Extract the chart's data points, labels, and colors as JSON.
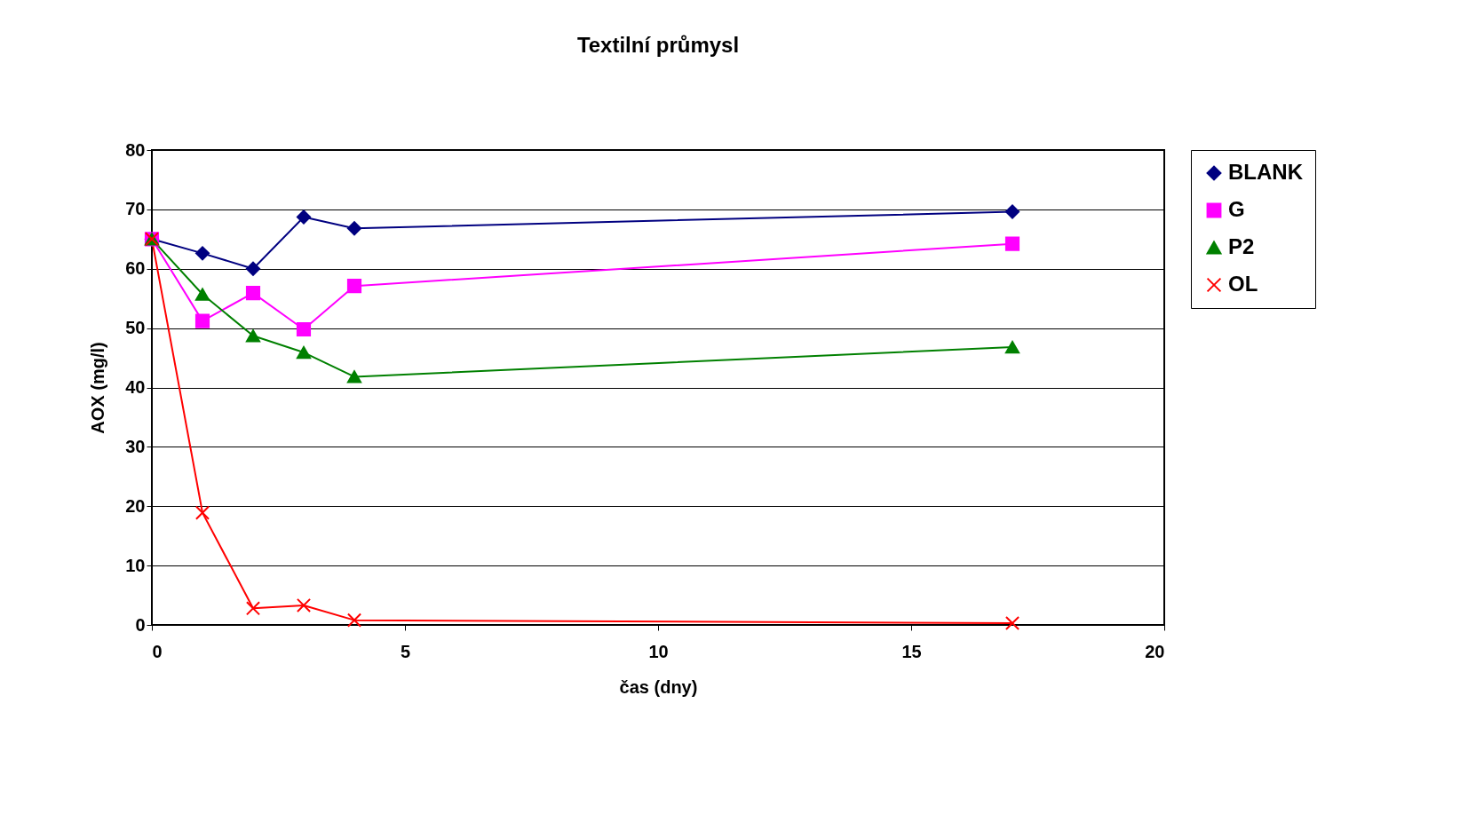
{
  "chart_data": {
    "type": "line",
    "title": "Textilní průmysl",
    "xlabel": "čas (dny)",
    "ylabel": "AOX (mg/l)",
    "x": [
      0,
      1,
      2,
      3,
      4,
      17
    ],
    "series": [
      {
        "name": "BLANK",
        "color": "#000080",
        "marker": "diamond",
        "values": [
          65,
          62.6,
          60,
          68.7,
          66.8,
          69.6
        ]
      },
      {
        "name": "G",
        "color": "#ff00ff",
        "marker": "square",
        "values": [
          65,
          51.2,
          55.9,
          49.8,
          57.1,
          64.2
        ]
      },
      {
        "name": "P2",
        "color": "#008000",
        "marker": "triangle",
        "values": [
          65,
          55.7,
          48.7,
          45.9,
          41.8,
          46.8
        ]
      },
      {
        "name": "OL",
        "color": "#ff0000",
        "marker": "cross",
        "values": [
          65,
          18.9,
          2.8,
          3.3,
          0.8,
          0.3
        ]
      }
    ],
    "xlim": [
      0,
      20
    ],
    "xticks": [
      0,
      5,
      10,
      15,
      20
    ],
    "ylim": [
      0,
      80
    ],
    "yticks": [
      0,
      10,
      20,
      30,
      40,
      50,
      60,
      70,
      80
    ],
    "grid": "y",
    "legend": "right",
    "line_style": "solid"
  }
}
